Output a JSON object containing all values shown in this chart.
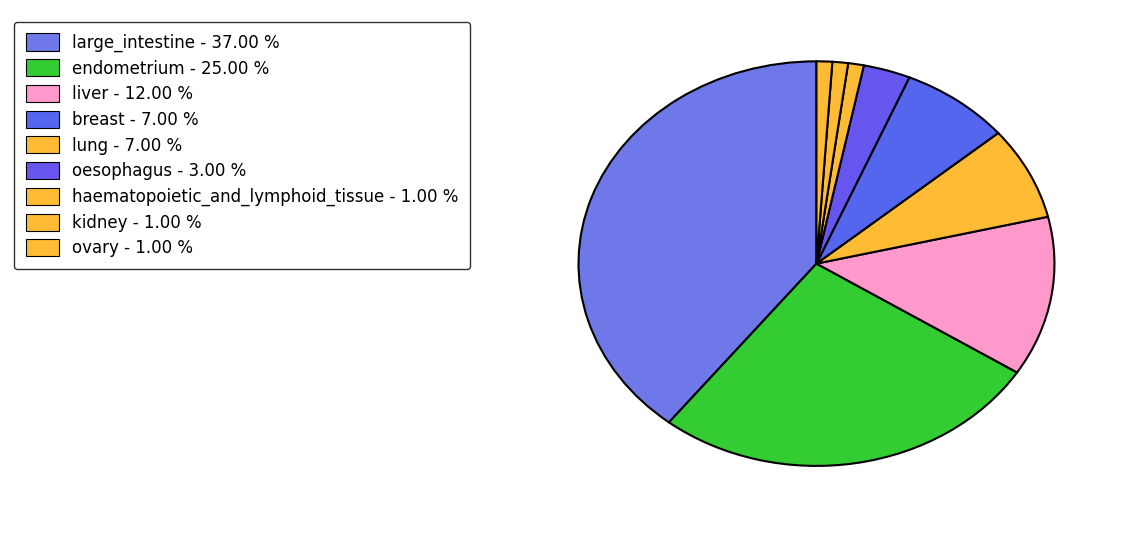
{
  "legend_labels": [
    "large_intestine - 37.00 %",
    "endometrium - 25.00 %",
    "liver - 12.00 %",
    "breast - 7.00 %",
    "lung - 7.00 %",
    "oesophagus - 3.00 %",
    "haematopoietic_and_lymphoid_tissue - 1.00 %",
    "kidney - 1.00 %",
    "ovary - 1.00 %"
  ],
  "values": [
    37,
    25,
    12,
    7,
    7,
    3,
    1,
    1,
    1
  ],
  "pie_colors": [
    "#6e78e8",
    "#33cc33",
    "#ff99cc",
    "#5566ee",
    "#ffbb33",
    "#6655ee",
    "#ffbb33",
    "#ffbb33",
    "#ffbb33"
  ],
  "legend_colors": [
    "#6e78e8",
    "#33cc33",
    "#ff99cc",
    "#5566ee",
    "#ffbb33",
    "#6655ee",
    "#ffbb33",
    "#ffbb33",
    "#ffbb33"
  ],
  "figsize": [
    11.34,
    5.38
  ],
  "dpi": 100,
  "background_color": "#ffffff",
  "legend_fontsize": 12
}
